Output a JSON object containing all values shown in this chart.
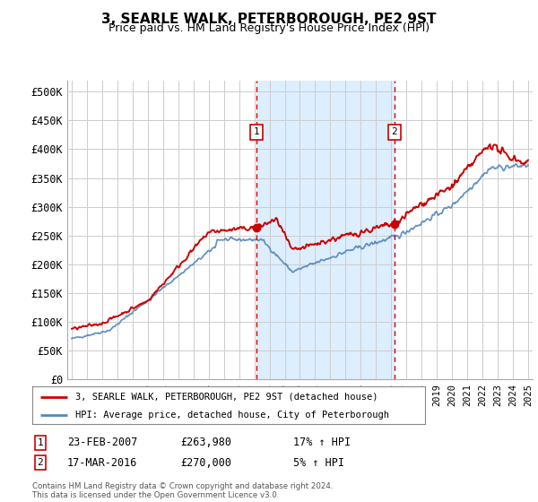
{
  "title": "3, SEARLE WALK, PETERBOROUGH, PE2 9ST",
  "subtitle": "Price paid vs. HM Land Registry's House Price Index (HPI)",
  "legend_line1": "3, SEARLE WALK, PETERBOROUGH, PE2 9ST (detached house)",
  "legend_line2": "HPI: Average price, detached house, City of Peterborough",
  "event1_date": "23-FEB-2007",
  "event1_price": "£263,980",
  "event1_hpi": "17% ↑ HPI",
  "event2_date": "17-MAR-2016",
  "event2_price": "£270,000",
  "event2_hpi": "5% ↑ HPI",
  "footer": "Contains HM Land Registry data © Crown copyright and database right 2024.\nThis data is licensed under the Open Government Licence v3.0.",
  "red_color": "#cc0000",
  "blue_color": "#5588bb",
  "blue_fill": "#ddeeff",
  "background_color": "#ffffff",
  "grid_color": "#cccccc",
  "ylim": [
    0,
    520000
  ],
  "yticks": [
    0,
    50000,
    100000,
    150000,
    200000,
    250000,
    300000,
    350000,
    400000,
    450000,
    500000
  ],
  "ytick_labels": [
    "£0",
    "£50K",
    "£100K",
    "£150K",
    "£200K",
    "£250K",
    "£300K",
    "£350K",
    "£400K",
    "£450K",
    "£500K"
  ],
  "year_start": 1995,
  "year_end": 2025,
  "event1_year": 2007.15,
  "event2_year": 2016.22,
  "event1_dot_value": 263980,
  "event2_dot_value": 270000
}
